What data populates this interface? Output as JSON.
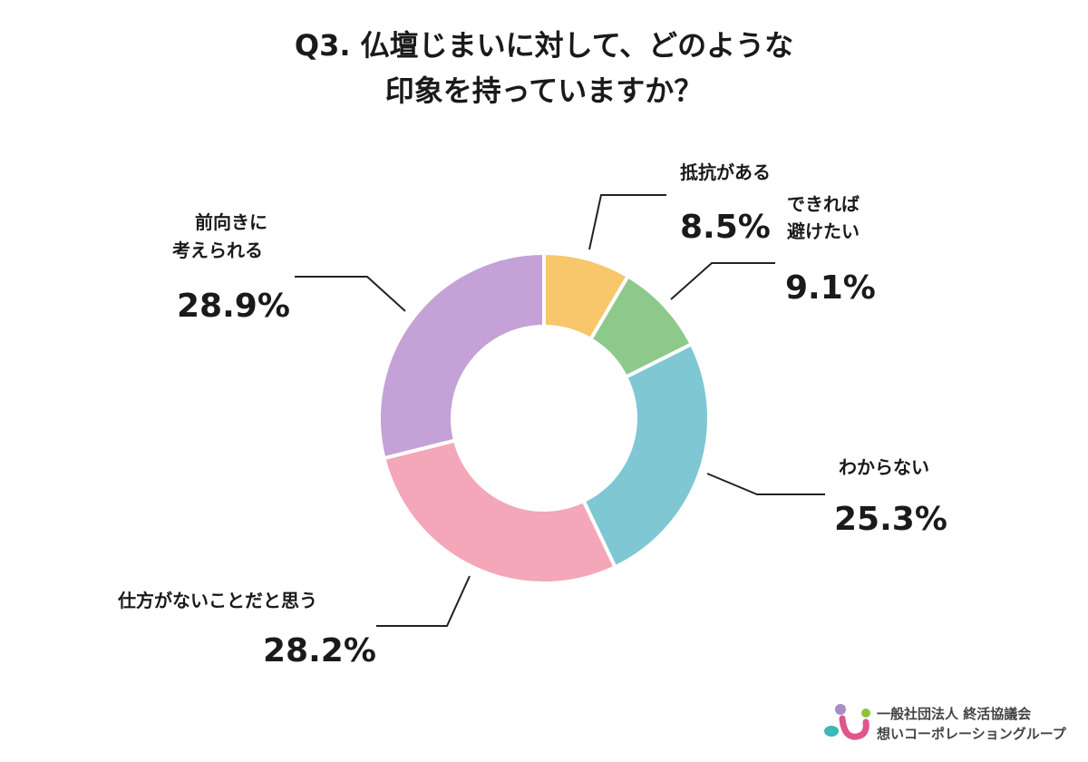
{
  "chart_data": {
    "type": "pie",
    "donut": true,
    "title": [
      "Q3. 仏壇じまいに対して、どのような",
      "印象を持っていますか？"
    ],
    "slices": [
      {
        "label": [
          "抵抗がある"
        ],
        "value": 8.5,
        "display": "8.5%",
        "color": "#F8C66B"
      },
      {
        "label": [
          "できれば",
          "避けたい"
        ],
        "value": 9.1,
        "display": "9.1%",
        "color": "#8DC98B"
      },
      {
        "label": [
          "わからない"
        ],
        "value": 25.3,
        "display": "25.3%",
        "color": "#7EC7D3"
      },
      {
        "label": [
          "仕方がないことだと思う"
        ],
        "value": 28.2,
        "display": "28.2%",
        "color": "#F3A7B8"
      },
      {
        "label": [
          "前向きに",
          "考えられる"
        ],
        "value": 28.9,
        "display": "28.9%",
        "color": "#C4A1D6"
      }
    ],
    "start": "top",
    "direction": "clockwise"
  },
  "logo": {
    "line1": "一般社団法人 終活協議会",
    "line2": "想いコーポレーショングループ"
  }
}
